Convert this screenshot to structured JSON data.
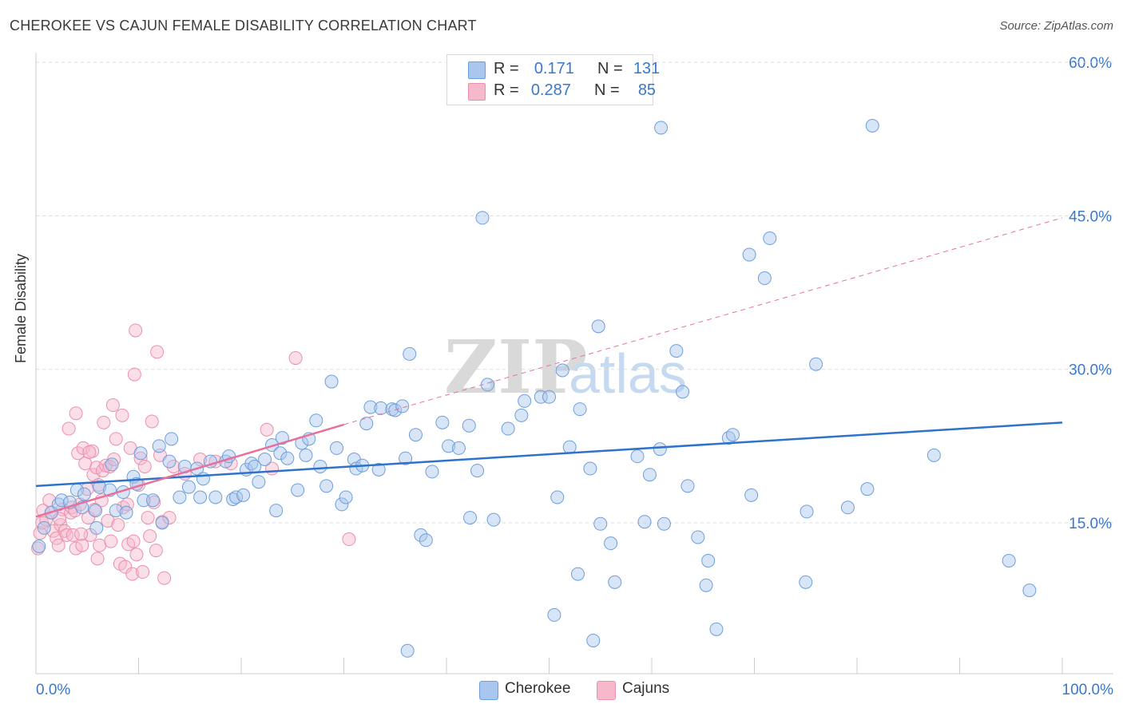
{
  "header": {
    "title": "CHEROKEE VS CAJUN FEMALE DISABILITY CORRELATION CHART",
    "source": "Source: ZipAtlas.com"
  },
  "legend": {
    "cherokee": {
      "r_label": "R =",
      "r_value": "0.171",
      "n_label": "N =",
      "n_value": "131"
    },
    "cajuns": {
      "r_label": "R =",
      "r_value": "0.287",
      "n_label": "N =",
      "n_value": "85"
    }
  },
  "bottom_legend": {
    "cherokee": "Cherokee",
    "cajuns": "Cajuns"
  },
  "colors": {
    "cherokee_fill": "#a9c6ee",
    "cherokee_stroke": "#6c9fdc",
    "cherokee_line": "#2f72cc",
    "cajuns_fill": "#f6b9cc",
    "cajuns_stroke": "#ec8fab",
    "cajuns_line": "#e8719a",
    "tick_label": "#3a78c8",
    "grid": "#dddddd"
  },
  "watermark": {
    "zip": "ZIP",
    "atlas": "atlas"
  },
  "chart_data": {
    "type": "scatter",
    "title": "CHEROKEE VS CAJUN FEMALE DISABILITY CORRELATION CHART",
    "xlabel": "",
    "ylabel": "Female Disability",
    "xlim": [
      0,
      100
    ],
    "ylim": [
      0,
      62
    ],
    "x_tick_labels": [
      "0.0%",
      "100.0%"
    ],
    "y_ticks": [
      15,
      30,
      45,
      60
    ],
    "y_tick_labels": [
      "15.0%",
      "30.0%",
      "45.0%",
      "60.0%"
    ],
    "grid": true,
    "legend_position": "top-center",
    "series": [
      {
        "name": "Cherokee",
        "trend": {
          "x": [
            0,
            100
          ],
          "y": [
            18.6,
            24.8
          ]
        },
        "points": [
          [
            0.3,
            12.7
          ],
          [
            0.8,
            14.5
          ],
          [
            1.5,
            16.0
          ],
          [
            2.2,
            16.8
          ],
          [
            2.5,
            17.2
          ],
          [
            3.3,
            17.0
          ],
          [
            4.0,
            18.2
          ],
          [
            4.5,
            16.5
          ],
          [
            4.7,
            17.8
          ],
          [
            5.8,
            16.2
          ],
          [
            5.9,
            14.5
          ],
          [
            6.2,
            18.5
          ],
          [
            7.2,
            18.2
          ],
          [
            7.4,
            20.7
          ],
          [
            7.8,
            16.2
          ],
          [
            8.5,
            18.0
          ],
          [
            8.8,
            16.0
          ],
          [
            9.5,
            19.5
          ],
          [
            9.8,
            18.8
          ],
          [
            10.2,
            21.8
          ],
          [
            10.5,
            17.2
          ],
          [
            11.4,
            17.2
          ],
          [
            12.0,
            22.5
          ],
          [
            12.3,
            15.0
          ],
          [
            13.0,
            21.0
          ],
          [
            13.2,
            23.2
          ],
          [
            14.0,
            17.5
          ],
          [
            14.5,
            20.5
          ],
          [
            14.9,
            18.5
          ],
          [
            15.7,
            20.3
          ],
          [
            16.0,
            17.5
          ],
          [
            16.3,
            19.3
          ],
          [
            17.0,
            21.0
          ],
          [
            17.5,
            17.5
          ],
          [
            18.5,
            21.0
          ],
          [
            18.8,
            21.5
          ],
          [
            19.2,
            17.3
          ],
          [
            19.5,
            17.5
          ],
          [
            20.2,
            17.7
          ],
          [
            20.5,
            20.2
          ],
          [
            21.0,
            20.8
          ],
          [
            21.3,
            20.5
          ],
          [
            21.7,
            19.0
          ],
          [
            22.3,
            21.2
          ],
          [
            23.0,
            22.6
          ],
          [
            23.4,
            16.2
          ],
          [
            23.8,
            21.8
          ],
          [
            24.0,
            23.3
          ],
          [
            24.5,
            21.3
          ],
          [
            25.5,
            18.2
          ],
          [
            25.9,
            22.8
          ],
          [
            26.3,
            21.6
          ],
          [
            26.6,
            23.2
          ],
          [
            27.3,
            25.0
          ],
          [
            27.7,
            20.5
          ],
          [
            28.3,
            18.6
          ],
          [
            28.8,
            28.8
          ],
          [
            29.3,
            22.3
          ],
          [
            29.8,
            16.8
          ],
          [
            30.2,
            17.5
          ],
          [
            31.0,
            21.2
          ],
          [
            31.2,
            20.3
          ],
          [
            31.8,
            20.6
          ],
          [
            32.2,
            24.7
          ],
          [
            32.6,
            26.3
          ],
          [
            33.4,
            20.2
          ],
          [
            33.6,
            26.2
          ],
          [
            34.7,
            26.1
          ],
          [
            35.0,
            26.0
          ],
          [
            35.7,
            26.4
          ],
          [
            36.0,
            21.3
          ],
          [
            36.4,
            31.5
          ],
          [
            37.0,
            23.6
          ],
          [
            37.5,
            13.8
          ],
          [
            38.0,
            13.3
          ],
          [
            38.6,
            20.0
          ],
          [
            39.6,
            24.8
          ],
          [
            40.2,
            22.5
          ],
          [
            41.2,
            22.3
          ],
          [
            42.2,
            24.5
          ],
          [
            42.3,
            15.5
          ],
          [
            43.0,
            20.1
          ],
          [
            43.5,
            44.8
          ],
          [
            44.0,
            28.5
          ],
          [
            44.6,
            15.3
          ],
          [
            46.0,
            24.2
          ],
          [
            47.3,
            25.5
          ],
          [
            47.6,
            26.9
          ],
          [
            49.2,
            27.3
          ],
          [
            50.0,
            27.3
          ],
          [
            50.8,
            17.5
          ],
          [
            51.3,
            29.9
          ],
          [
            52.0,
            22.4
          ],
          [
            52.8,
            10.0
          ],
          [
            53.0,
            26.1
          ],
          [
            54.0,
            20.3
          ],
          [
            54.3,
            3.5
          ],
          [
            54.8,
            34.2
          ],
          [
            55.0,
            14.9
          ],
          [
            56.0,
            13.0
          ],
          [
            56.4,
            9.2
          ],
          [
            58.6,
            21.5
          ],
          [
            59.3,
            15.1
          ],
          [
            59.8,
            19.7
          ],
          [
            60.8,
            22.2
          ],
          [
            60.9,
            53.6
          ],
          [
            61.2,
            14.9
          ],
          [
            62.4,
            31.8
          ],
          [
            63.5,
            18.6
          ],
          [
            64.5,
            13.6
          ],
          [
            65.3,
            8.9
          ],
          [
            65.5,
            11.3
          ],
          [
            66.3,
            4.6
          ],
          [
            67.5,
            23.3
          ],
          [
            67.9,
            23.6
          ],
          [
            69.5,
            41.2
          ],
          [
            69.7,
            17.7
          ],
          [
            71.0,
            38.9
          ],
          [
            71.5,
            42.8
          ],
          [
            75.0,
            9.2
          ],
          [
            75.1,
            16.1
          ],
          [
            76.0,
            30.5
          ],
          [
            79.1,
            16.5
          ],
          [
            81.0,
            18.3
          ],
          [
            81.5,
            53.8
          ],
          [
            87.5,
            21.6
          ],
          [
            94.8,
            11.3
          ],
          [
            96.8,
            8.4
          ],
          [
            36.2,
            2.5
          ],
          [
            50.5,
            6.0
          ],
          [
            63.0,
            27.8
          ]
        ]
      },
      {
        "name": "Cajuns",
        "trend": {
          "x": [
            0,
            30
          ],
          "y": [
            15.6,
            24.6
          ],
          "dashed_extension": {
            "x": [
              30,
              100
            ],
            "y": [
              24.6,
              44.8
            ]
          }
        },
        "points": [
          [
            0.2,
            12.5
          ],
          [
            0.4,
            14.0
          ],
          [
            0.6,
            15.0
          ],
          [
            0.7,
            16.2
          ],
          [
            1.0,
            15.3
          ],
          [
            1.3,
            17.2
          ],
          [
            1.5,
            16.0
          ],
          [
            1.7,
            14.2
          ],
          [
            2.0,
            13.5
          ],
          [
            2.2,
            12.8
          ],
          [
            2.4,
            14.8
          ],
          [
            2.6,
            16.3
          ],
          [
            2.8,
            14.2
          ],
          [
            3.0,
            13.8
          ],
          [
            3.2,
            24.2
          ],
          [
            3.4,
            16.0
          ],
          [
            3.5,
            16.5
          ],
          [
            3.6,
            13.8
          ],
          [
            3.8,
            16.2
          ],
          [
            3.9,
            12.5
          ],
          [
            4.1,
            21.8
          ],
          [
            4.3,
            16.8
          ],
          [
            4.5,
            12.8
          ],
          [
            4.6,
            22.3
          ],
          [
            4.8,
            20.8
          ],
          [
            5.0,
            18.3
          ],
          [
            5.1,
            15.5
          ],
          [
            5.3,
            13.8
          ],
          [
            5.5,
            22.0
          ],
          [
            5.6,
            19.7
          ],
          [
            5.7,
            16.3
          ],
          [
            5.9,
            20.4
          ],
          [
            6.0,
            11.5
          ],
          [
            6.2,
            12.8
          ],
          [
            6.4,
            17.2
          ],
          [
            6.5,
            20.1
          ],
          [
            6.6,
            24.8
          ],
          [
            6.8,
            20.6
          ],
          [
            7.0,
            15.2
          ],
          [
            7.2,
            20.5
          ],
          [
            7.3,
            13.2
          ],
          [
            7.5,
            26.5
          ],
          [
            7.6,
            21.2
          ],
          [
            7.8,
            23.2
          ],
          [
            8.0,
            14.8
          ],
          [
            8.2,
            11.0
          ],
          [
            8.4,
            25.5
          ],
          [
            8.5,
            16.5
          ],
          [
            8.7,
            10.7
          ],
          [
            8.9,
            16.8
          ],
          [
            9.0,
            12.9
          ],
          [
            9.2,
            22.3
          ],
          [
            9.4,
            10.0
          ],
          [
            9.5,
            13.2
          ],
          [
            9.8,
            11.9
          ],
          [
            10.0,
            18.7
          ],
          [
            10.2,
            21.3
          ],
          [
            10.4,
            10.2
          ],
          [
            10.6,
            20.5
          ],
          [
            10.9,
            15.5
          ],
          [
            11.1,
            13.7
          ],
          [
            11.3,
            24.9
          ],
          [
            11.7,
            12.3
          ],
          [
            12.1,
            21.6
          ],
          [
            12.3,
            15.1
          ],
          [
            12.5,
            9.6
          ],
          [
            13.0,
            15.5
          ],
          [
            13.4,
            20.5
          ],
          [
            14.5,
            19.8
          ],
          [
            16.0,
            21.2
          ],
          [
            19.0,
            20.8
          ],
          [
            22.5,
            24.1
          ],
          [
            23.0,
            20.3
          ],
          [
            25.3,
            31.1
          ],
          [
            11.8,
            31.7
          ],
          [
            9.6,
            29.5
          ],
          [
            9.7,
            33.8
          ],
          [
            3.9,
            25.7
          ],
          [
            5.2,
            21.9
          ],
          [
            11.5,
            17.0
          ],
          [
            17.5,
            21.0
          ],
          [
            6.1,
            18.7
          ],
          [
            4.4,
            13.9
          ],
          [
            2.3,
            15.4
          ],
          [
            30.5,
            13.4
          ]
        ]
      }
    ]
  }
}
